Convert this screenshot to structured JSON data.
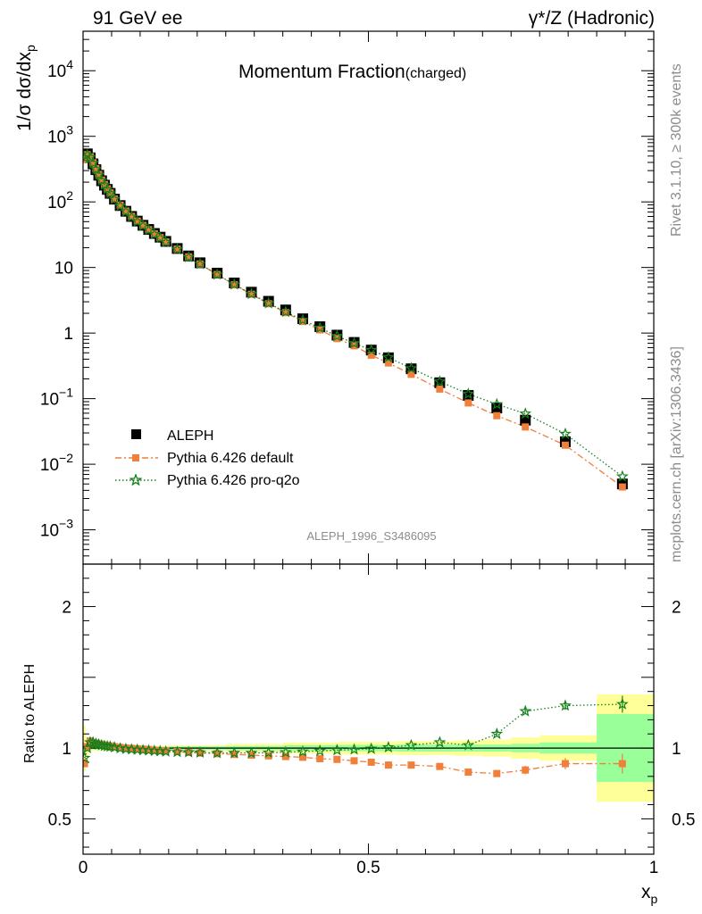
{
  "header": {
    "left": "91 GeV ee",
    "right": "γ*/Z (Hadronic)"
  },
  "side": {
    "rivet": "Rivet 3.1.10, ≥ 300k events",
    "mcplots": "mcplots.cern.ch [arXiv:1306.3436]"
  },
  "colors": {
    "data": "#000000",
    "default": "#f07f3c",
    "proq2o": "#15801a",
    "band_outer": "#ffff99",
    "band_inner": "#99ff99"
  },
  "chart_data": [
    {
      "type": "scatter",
      "panel": "main",
      "title": "Momentum Fraction",
      "title_suffix": "(charged)",
      "ylabel": "1/σ dσ/dx",
      "ylabel_sub": "p",
      "yscale": "log",
      "xlim": [
        0,
        1
      ],
      "ylim": [
        0.0003,
        40000
      ],
      "yticks": [
        {
          "v": 0.001,
          "b": "10",
          "e": "−3"
        },
        {
          "v": 0.01,
          "b": "10",
          "e": "−2"
        },
        {
          "v": 0.1,
          "b": "10",
          "e": "−1"
        },
        {
          "v": 1,
          "b": "1",
          "e": ""
        },
        {
          "v": 10,
          "b": "10",
          "e": ""
        },
        {
          "v": 100,
          "b": "10",
          "e": "2"
        },
        {
          "v": 1000,
          "b": "10",
          "e": "3"
        },
        {
          "v": 10000,
          "b": "10",
          "e": "4"
        }
      ],
      "watermark": "ALEPH_1996_S3486095",
      "legend": [
        "ALEPH",
        "Pythia 6.426 default",
        "Pythia 6.426 pro-q2o"
      ],
      "x": [
        0.0025,
        0.0075,
        0.0125,
        0.0175,
        0.0225,
        0.0275,
        0.0325,
        0.0375,
        0.0425,
        0.0475,
        0.055,
        0.065,
        0.075,
        0.085,
        0.095,
        0.105,
        0.115,
        0.125,
        0.135,
        0.145,
        0.165,
        0.185,
        0.205,
        0.235,
        0.265,
        0.295,
        0.325,
        0.355,
        0.385,
        0.415,
        0.445,
        0.475,
        0.505,
        0.535,
        0.575,
        0.625,
        0.675,
        0.725,
        0.775,
        0.845,
        0.945
      ],
      "series": [
        {
          "name": "ALEPH",
          "values": [
            500,
            540,
            470,
            380,
            310,
            255,
            210,
            180,
            155,
            135,
            110,
            88,
            72,
            60,
            51,
            44,
            38,
            33,
            29,
            25,
            19.5,
            15,
            11.8,
            8.2,
            5.8,
            4.2,
            3.05,
            2.25,
            1.65,
            1.25,
            0.93,
            0.72,
            0.55,
            0.42,
            0.285,
            0.175,
            0.112,
            0.072,
            0.047,
            0.022,
            0.005
          ]
        },
        {
          "name": "Pythia 6.426 default",
          "values": [
            445,
            525,
            490,
            395,
            320,
            262,
            215,
            184,
            158,
            137,
            111,
            89,
            72.5,
            60.2,
            51,
            43.8,
            37.7,
            32.5,
            28.5,
            24.5,
            19,
            14.5,
            11.3,
            7.8,
            5.45,
            3.9,
            2.8,
            2.05,
            1.5,
            1.12,
            0.825,
            0.64,
            0.46,
            0.35,
            0.235,
            0.14,
            0.086,
            0.055,
            0.037,
            0.0195,
            0.0045
          ]
        },
        {
          "name": "Pythia 6.426 pro-q2o",
          "values": [
            470,
            520,
            480,
            390,
            315,
            259,
            213,
            182,
            156,
            135.5,
            110,
            87.7,
            71.5,
            59.2,
            50.2,
            43.3,
            37.3,
            32.2,
            28.2,
            24.3,
            18.9,
            14.4,
            11.3,
            7.8,
            5.5,
            3.95,
            2.85,
            2.1,
            1.58,
            1.2,
            0.9,
            0.7,
            0.55,
            0.425,
            0.29,
            0.182,
            0.118,
            0.082,
            0.059,
            0.029,
            0.0065
          ]
        }
      ]
    },
    {
      "type": "line",
      "panel": "ratio",
      "ylabel": "Ratio to ALEPH",
      "xlabel": "x",
      "xlabel_sub": "p",
      "xlim": [
        0,
        1
      ],
      "ylim": [
        0.25,
        2.3
      ],
      "xticks": [
        {
          "v": 0,
          "label": "0"
        },
        {
          "v": 0.5,
          "label": "0.5"
        },
        {
          "v": 1,
          "label": "1"
        }
      ],
      "yticks": [
        {
          "v": 0.5,
          "label": "0.5"
        },
        {
          "v": 1,
          "label": "1"
        },
        {
          "v": 2,
          "label": "2"
        }
      ],
      "band": [
        {
          "x0": 0,
          "x1": 0.005,
          "outer": 0.16,
          "inner": 0.03
        },
        {
          "x0": 0.005,
          "x1": 0.01,
          "outer": 0.07,
          "inner": 0.02
        },
        {
          "x0": 0.01,
          "x1": 0.05,
          "outer": 0.02,
          "inner": 0.01
        },
        {
          "x0": 0.05,
          "x1": 0.15,
          "outer": 0.015,
          "inner": 0.01
        },
        {
          "x0": 0.15,
          "x1": 0.25,
          "outer": 0.02,
          "inner": 0.012
        },
        {
          "x0": 0.25,
          "x1": 0.35,
          "outer": 0.03,
          "inner": 0.015
        },
        {
          "x0": 0.35,
          "x1": 0.45,
          "outer": 0.04,
          "inner": 0.02
        },
        {
          "x0": 0.45,
          "x1": 0.55,
          "outer": 0.045,
          "inner": 0.022
        },
        {
          "x0": 0.55,
          "x1": 0.6,
          "outer": 0.05,
          "inner": 0.025
        },
        {
          "x0": 0.6,
          "x1": 0.65,
          "outer": 0.05,
          "inner": 0.025
        },
        {
          "x0": 0.65,
          "x1": 0.7,
          "outer": 0.055,
          "inner": 0.025
        },
        {
          "x0": 0.7,
          "x1": 0.75,
          "outer": 0.06,
          "inner": 0.025
        },
        {
          "x0": 0.75,
          "x1": 0.8,
          "outer": 0.075,
          "inner": 0.03
        },
        {
          "x0": 0.8,
          "x1": 0.9,
          "outer": 0.09,
          "inner": 0.04
        },
        {
          "x0": 0.9,
          "x1": 1.0,
          "outer": 0.38,
          "inner": 0.24
        }
      ],
      "series": [
        {
          "name": "Pythia 6.426 default",
          "values": [
            0.89,
            1.01,
            1.05,
            1.04,
            1.035,
            1.03,
            1.025,
            1.022,
            1.018,
            1.015,
            1.01,
            1.005,
            1.0,
            0.998,
            0.995,
            0.992,
            0.99,
            0.985,
            0.982,
            0.98,
            0.975,
            0.97,
            0.965,
            0.96,
            0.955,
            0.95,
            0.945,
            0.94,
            0.935,
            0.925,
            0.92,
            0.91,
            0.9,
            0.88,
            0.88,
            0.87,
            0.83,
            0.82,
            0.845,
            0.89,
            0.89
          ]
        },
        {
          "name": "Pythia 6.426 pro-q2o",
          "values": [
            0.93,
            1.0,
            1.04,
            1.04,
            1.03,
            1.025,
            1.02,
            1.015,
            1.012,
            1.01,
            1.005,
            0.998,
            0.994,
            0.99,
            0.988,
            0.985,
            0.983,
            0.98,
            0.978,
            0.975,
            0.972,
            0.97,
            0.968,
            0.965,
            0.965,
            0.965,
            0.967,
            0.97,
            0.975,
            0.98,
            0.985,
            0.99,
            0.995,
            1.005,
            1.02,
            1.04,
            1.02,
            1.1,
            1.26,
            1.3,
            1.31
          ]
        }
      ],
      "errors": {
        "Pythia 6.426 default": [
          0,
          0,
          0,
          0,
          0,
          0,
          0,
          0,
          0,
          0,
          0,
          0,
          0,
          0,
          0,
          0,
          0,
          0,
          0,
          0,
          0,
          0,
          0,
          0,
          0,
          0,
          0,
          0,
          0,
          0,
          0,
          0,
          0,
          0,
          0,
          0,
          0,
          0.02,
          0.03,
          0.04,
          0.07
        ],
        "Pythia 6.426 pro-q2o": [
          0,
          0,
          0,
          0,
          0,
          0,
          0,
          0,
          0,
          0,
          0,
          0,
          0,
          0,
          0,
          0,
          0,
          0,
          0,
          0,
          0,
          0,
          0,
          0,
          0,
          0,
          0,
          0,
          0,
          0,
          0,
          0,
          0,
          0,
          0,
          0,
          0,
          0.02,
          0.02,
          0.03,
          0.06
        ]
      }
    }
  ]
}
